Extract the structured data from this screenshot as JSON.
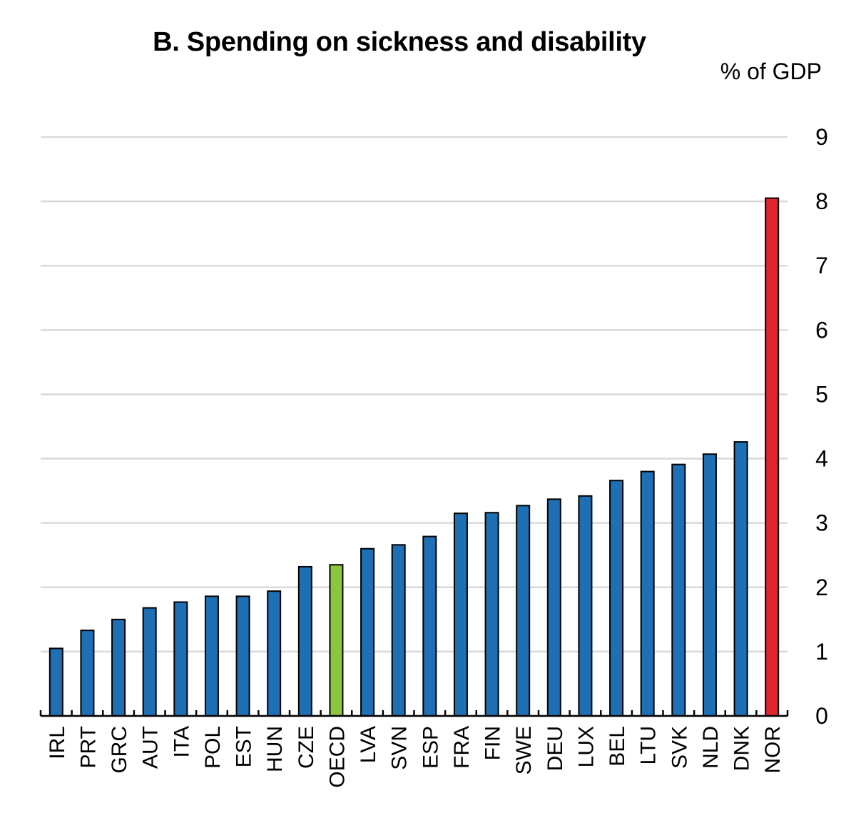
{
  "chart_data": {
    "type": "bar",
    "title": "B. Spending on sickness and disability",
    "unit_label": "% of GDP",
    "xlabel": "",
    "ylabel": "",
    "ylim": [
      0,
      9
    ],
    "yticks": [
      0,
      1,
      2,
      3,
      4,
      5,
      6,
      7,
      8,
      9
    ],
    "grid": true,
    "y_axis_side": "right",
    "categories": [
      "IRL",
      "PRT",
      "GRC",
      "AUT",
      "ITA",
      "POL",
      "EST",
      "HUN",
      "CZE",
      "OECD",
      "LVA",
      "SVN",
      "ESP",
      "FRA",
      "FIN",
      "SWE",
      "DEU",
      "LUX",
      "BEL",
      "LTU",
      "SVK",
      "NLD",
      "DNK",
      "NOR"
    ],
    "values": [
      1.05,
      1.33,
      1.5,
      1.68,
      1.77,
      1.86,
      1.86,
      1.94,
      2.32,
      2.35,
      2.6,
      2.66,
      2.79,
      3.15,
      3.16,
      3.27,
      3.37,
      3.42,
      3.66,
      3.8,
      3.91,
      4.07,
      4.26,
      8.05
    ],
    "colors": {
      "default": "#1f6fb5",
      "highlight_oecd": "#8cc63f",
      "highlight_nor": "#e0262f",
      "grid": "#d9d9d9",
      "axis": "#000000"
    },
    "bar_colors": [
      "#1f6fb5",
      "#1f6fb5",
      "#1f6fb5",
      "#1f6fb5",
      "#1f6fb5",
      "#1f6fb5",
      "#1f6fb5",
      "#1f6fb5",
      "#1f6fb5",
      "#8cc63f",
      "#1f6fb5",
      "#1f6fb5",
      "#1f6fb5",
      "#1f6fb5",
      "#1f6fb5",
      "#1f6fb5",
      "#1f6fb5",
      "#1f6fb5",
      "#1f6fb5",
      "#1f6fb5",
      "#1f6fb5",
      "#1f6fb5",
      "#1f6fb5",
      "#e0262f"
    ]
  }
}
